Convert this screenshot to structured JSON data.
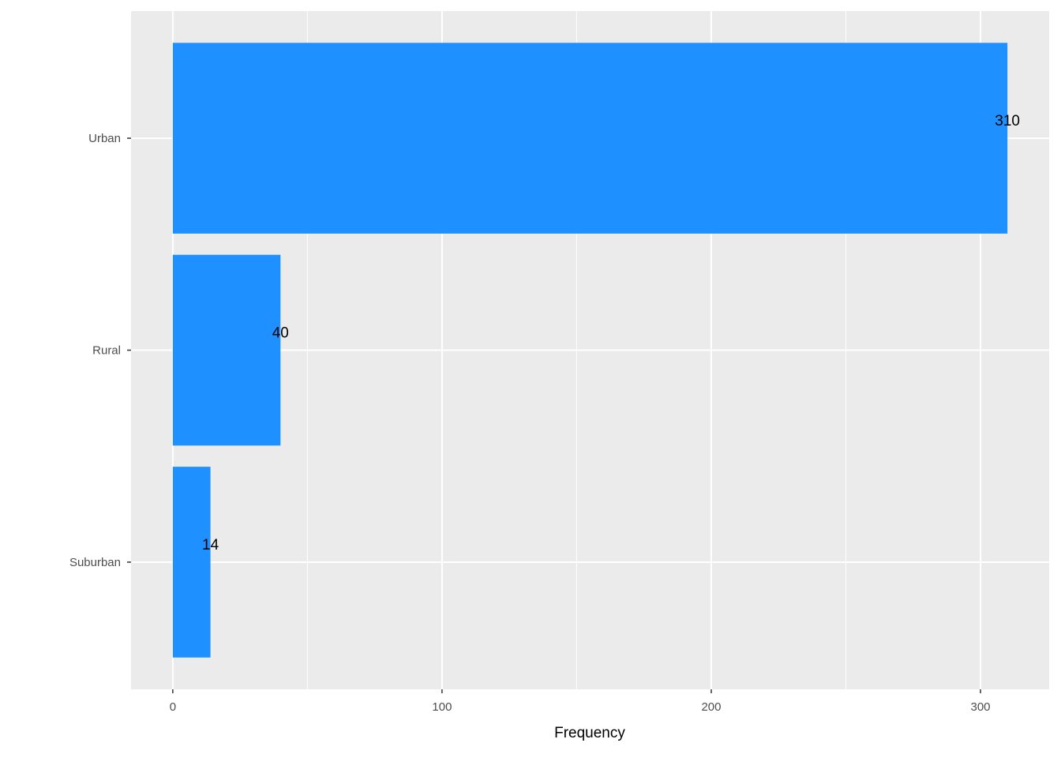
{
  "chart_data": {
    "type": "bar",
    "orientation": "horizontal",
    "x_label": "Frequency",
    "categories": [
      "Urban",
      "Rural",
      "Suburban"
    ],
    "values": [
      310,
      40,
      14
    ],
    "color": "#1e90ff",
    "xlim": [
      -15.5,
      325.5
    ],
    "xticks": [
      0,
      100,
      200,
      300
    ],
    "x_minor_ticks": [
      50,
      150,
      250
    ],
    "grid": true
  }
}
